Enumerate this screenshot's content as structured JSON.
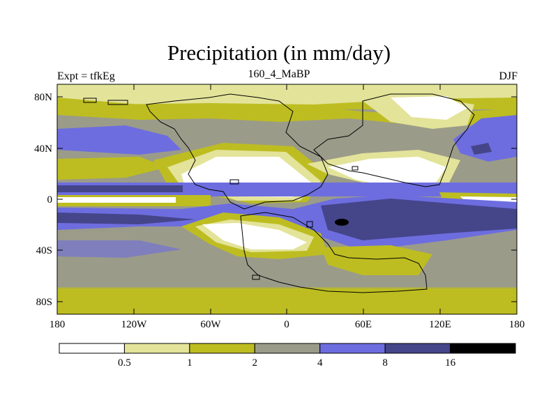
{
  "title": "Precipitation (in mm/day)",
  "left_string": "Expt = tfkEg",
  "center_string": "160_4_MaBP",
  "right_string": "DJF",
  "lat_labels": [
    "80N",
    "40N",
    "0",
    "40S",
    "80S"
  ],
  "lon_labels": [
    "180",
    "120W",
    "60W",
    "0",
    "60E",
    "120E",
    "180"
  ],
  "colorbar": {
    "levels": [
      "0.5",
      "1",
      "2",
      "4",
      "8",
      "16"
    ],
    "colors": [
      "#ffffff",
      "#e3e39a",
      "#bdbd21",
      "#9b9b8a",
      "#6d6de0",
      "#45458a",
      "#000000"
    ]
  }
}
